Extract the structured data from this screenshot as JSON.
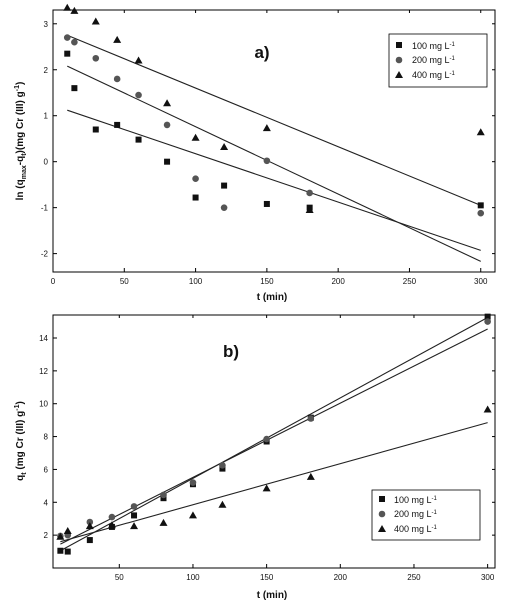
{
  "chart_data": [
    {
      "type": "scatter",
      "panel_label": "a)",
      "xlabel": "t (min)",
      "ylabel_parts": {
        "a": "ln (q",
        "b": "max",
        "c": "-q",
        "d": "t",
        "e": ")(mg Cr (III) g",
        "f": "-1",
        "g": ")"
      },
      "xlim": [
        0,
        310
      ],
      "ylim": [
        -2.4,
        3.3
      ],
      "xticks": [
        0,
        50,
        100,
        150,
        200,
        250,
        300
      ],
      "yticks": [
        -2,
        -1,
        0,
        1,
        2,
        3
      ],
      "legend_position": "top-right",
      "series": [
        {
          "name": "100 mg L",
          "name_sup": "-1",
          "marker": "square",
          "x": [
            10,
            15,
            30,
            45,
            60,
            80,
            100,
            120,
            150,
            180,
            300
          ],
          "y": [
            2.35,
            1.6,
            0.7,
            0.8,
            0.48,
            0.0,
            -0.78,
            -0.52,
            -0.92,
            -1.0,
            -0.95
          ],
          "fit": [
            [
              10,
              1.12
            ],
            [
              300,
              -1.93
            ]
          ]
        },
        {
          "name": "200 mg L",
          "name_sup": "-1",
          "marker": "circle",
          "x": [
            10,
            15,
            30,
            45,
            60,
            80,
            100,
            120,
            150,
            180,
            300
          ],
          "y": [
            2.7,
            2.6,
            2.25,
            1.8,
            1.45,
            0.8,
            -0.37,
            -1.0,
            0.02,
            -0.68,
            -1.12
          ],
          "fit": [
            [
              10,
              2.08
            ],
            [
              300,
              -2.17
            ]
          ]
        },
        {
          "name": "400 mg L",
          "name_sup": "-1",
          "marker": "triangle",
          "x": [
            10,
            15,
            30,
            45,
            60,
            80,
            100,
            120,
            150,
            180,
            300
          ],
          "y": [
            3.35,
            3.28,
            3.05,
            2.65,
            2.2,
            1.27,
            0.52,
            0.32,
            0.73,
            -1.05,
            0.64
          ],
          "fit": [
            [
              10,
              2.75
            ],
            [
              300,
              -0.95
            ]
          ]
        }
      ]
    },
    {
      "type": "scatter",
      "panel_label": "b)",
      "xlabel": "t (min)",
      "ylabel_parts": {
        "a": "q",
        "b": "t",
        "c": " (mg Cr (III) g",
        "d": "-1",
        "e": ")"
      },
      "xlim": [
        5,
        305
      ],
      "ylim": [
        0,
        15.4
      ],
      "xticks": [
        50,
        100,
        150,
        200,
        250,
        300
      ],
      "yticks": [
        2,
        4,
        6,
        8,
        10,
        12,
        14
      ],
      "legend_position": "bottom-right",
      "series": [
        {
          "name": "100 mg L",
          "name_sup": "-1",
          "marker": "square",
          "x": [
            10,
            15,
            30,
            45,
            60,
            80,
            100,
            120,
            150,
            180,
            300
          ],
          "y": [
            1.05,
            1.0,
            1.7,
            2.5,
            3.2,
            4.25,
            5.1,
            6.05,
            7.7,
            9.15,
            15.3
          ],
          "fit": [
            [
              10,
              1.05
            ],
            [
              300,
              15.25
            ]
          ]
        },
        {
          "name": "200 mg L",
          "name_sup": "-1",
          "marker": "circle",
          "x": [
            10,
            15,
            30,
            45,
            60,
            80,
            100,
            120,
            150,
            180,
            300
          ],
          "y": [
            1.95,
            2.0,
            2.8,
            3.1,
            3.75,
            4.45,
            5.2,
            6.25,
            7.85,
            9.1,
            15.0
          ],
          "fit": [
            [
              10,
              1.45
            ],
            [
              300,
              14.55
            ]
          ]
        },
        {
          "name": "400 mg L",
          "name_sup": "-1",
          "marker": "triangle",
          "x": [
            10,
            15,
            30,
            45,
            60,
            80,
            100,
            120,
            150,
            180,
            300
          ],
          "y": [
            1.9,
            2.25,
            2.55,
            2.6,
            2.55,
            2.75,
            3.2,
            3.85,
            4.85,
            5.55,
            9.65
          ],
          "fit": [
            [
              10,
              1.6
            ],
            [
              300,
              8.85
            ]
          ]
        }
      ]
    }
  ]
}
